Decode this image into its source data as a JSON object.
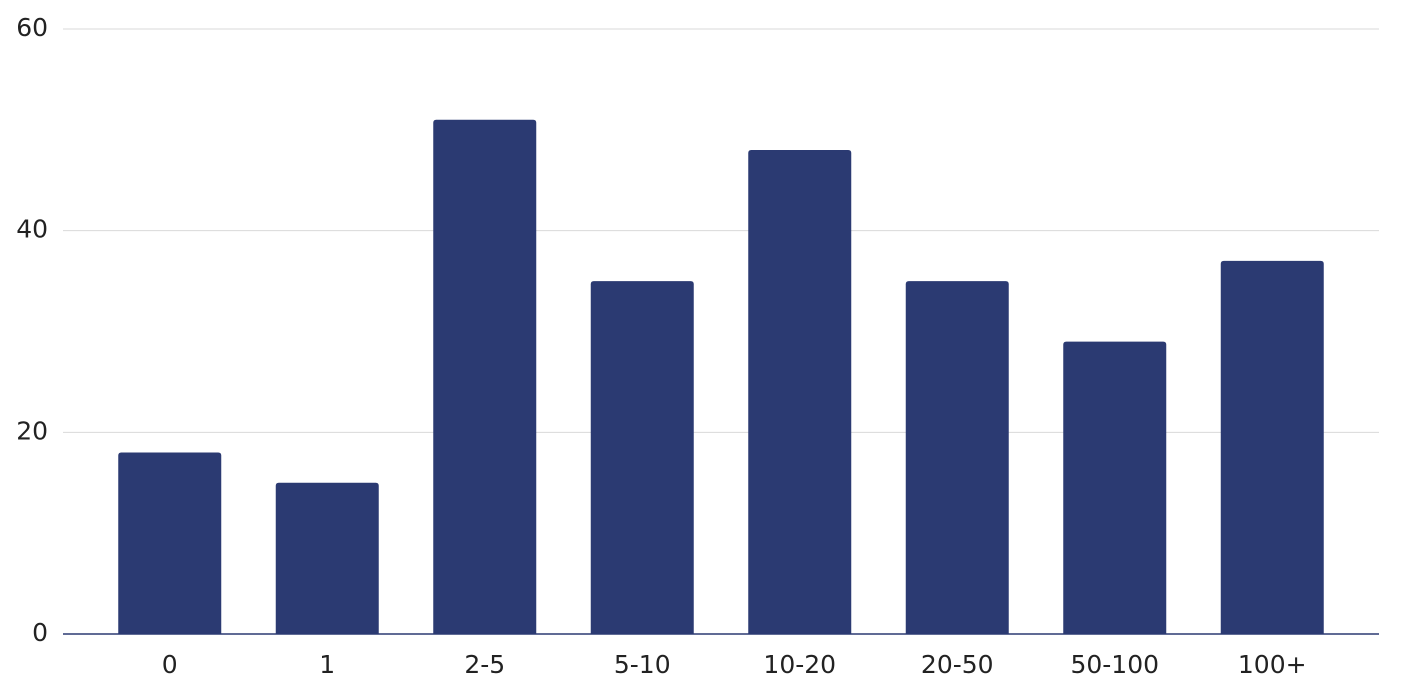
{
  "chart_data": {
    "type": "bar",
    "categories": [
      "0",
      "1",
      "2-5",
      "5-10",
      "10-20",
      "20-50",
      "50-100",
      "100+"
    ],
    "values": [
      18,
      15,
      51,
      35,
      48,
      35,
      29,
      37
    ],
    "color": "#2b3a72",
    "ylim": [
      0,
      60
    ],
    "yticks": [
      0,
      20,
      40,
      60
    ],
    "grid": true
  }
}
